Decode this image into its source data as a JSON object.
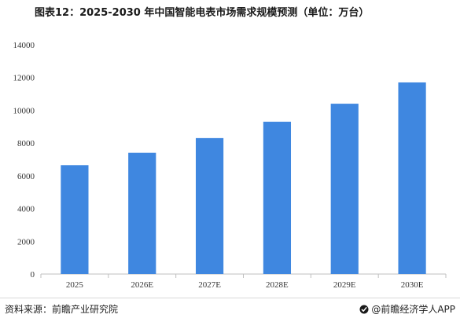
{
  "title": "图表12：2025-2030 年中国智能电表市场需求规模预测（单位：万台）",
  "footer": {
    "source": "资料来源：前瞻产业研究院",
    "brand": "@前瞻经济学人APP"
  },
  "colors": {
    "bar": "#3f87e0",
    "axis": "#bfbfbf"
  },
  "chart_data": {
    "type": "bar",
    "categories": [
      "2025",
      "2026E",
      "2027E",
      "2028E",
      "2029E",
      "2030E"
    ],
    "values": [
      6650,
      7400,
      8300,
      9300,
      10400,
      11700
    ],
    "yticks": [
      0,
      2000,
      4000,
      6000,
      8000,
      10000,
      12000,
      14000
    ],
    "ylim": [
      0,
      14000
    ],
    "grid": false,
    "legend": "none"
  }
}
